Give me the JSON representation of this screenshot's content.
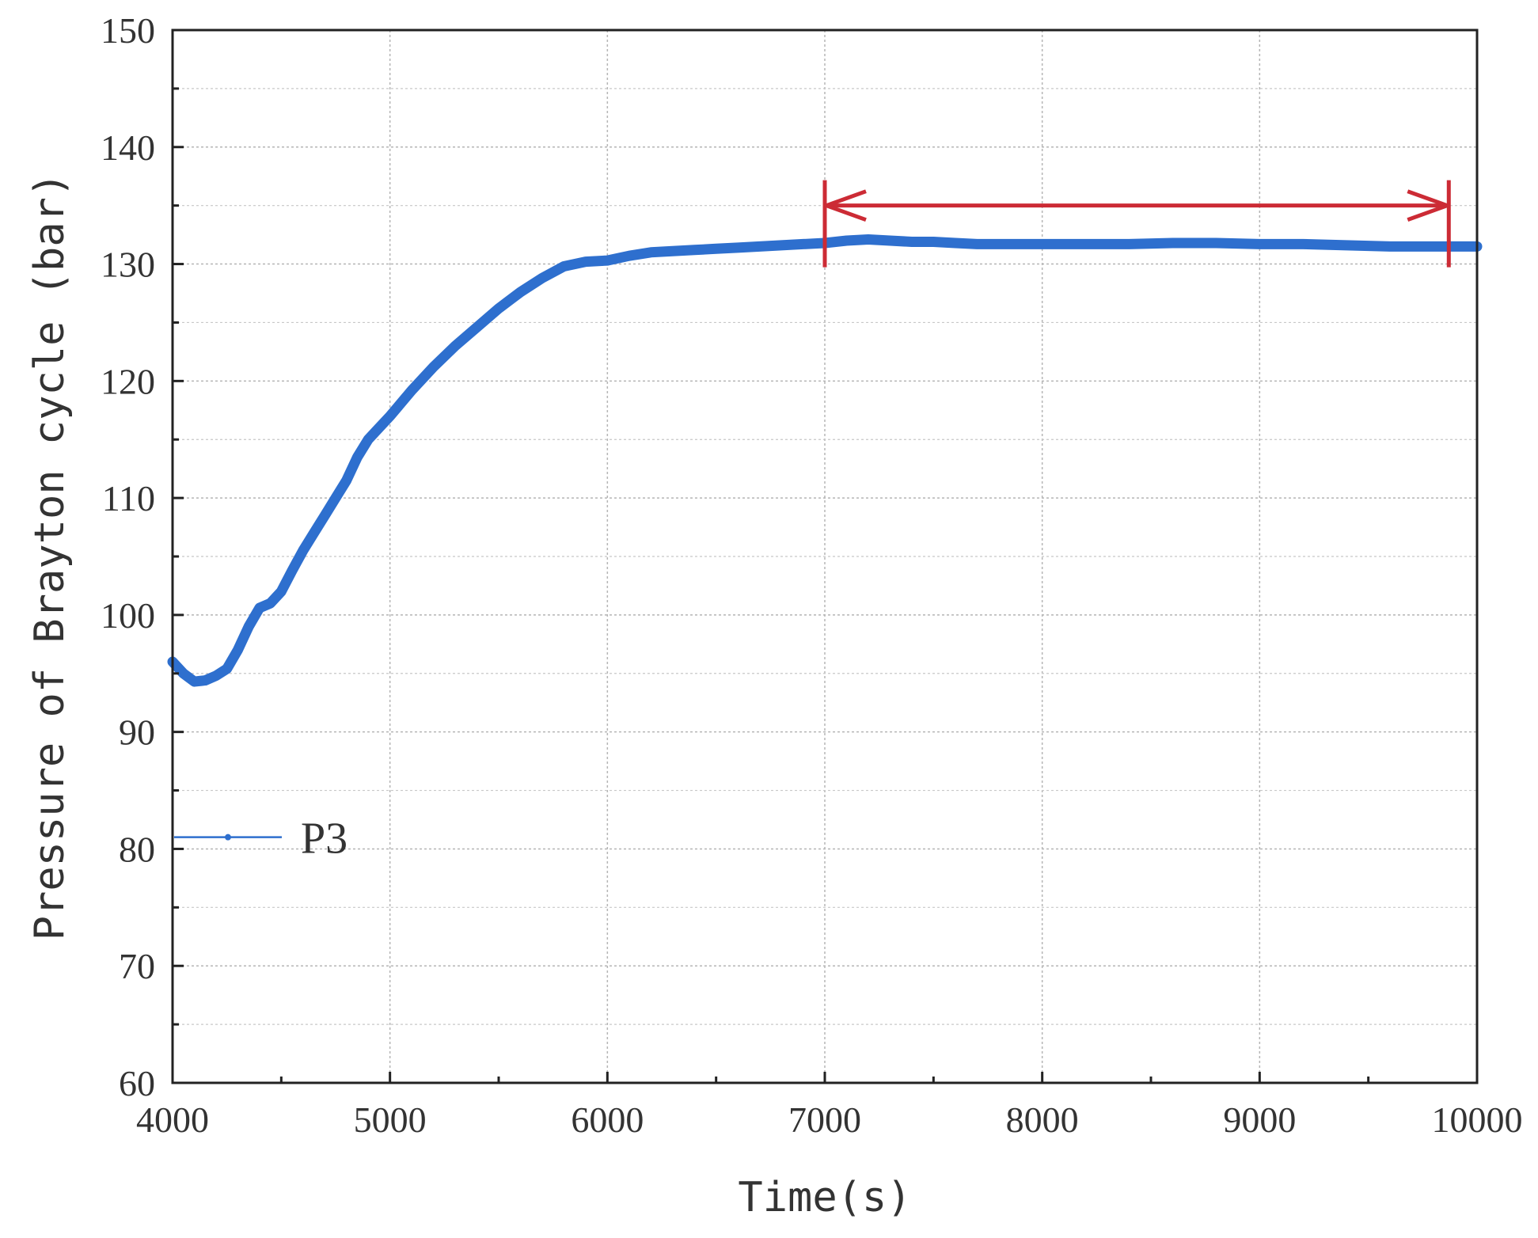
{
  "chart_data": {
    "type": "line",
    "xlabel": "Time(s)",
    "ylabel": "Pressure of Brayton cycle (bar)",
    "xlim": [
      4000,
      10000
    ],
    "ylim": [
      60,
      150
    ],
    "xticks": [
      4000,
      5000,
      6000,
      7000,
      8000,
      9000,
      10000
    ],
    "yticks": [
      60,
      70,
      80,
      90,
      100,
      110,
      120,
      130,
      140,
      150
    ],
    "grid": true,
    "legend_position": "lower-left",
    "series": [
      {
        "name": "P3",
        "color": "#2e6fce",
        "x": [
          4000,
          4050,
          4100,
          4150,
          4200,
          4250,
          4300,
          4350,
          4400,
          4450,
          4500,
          4550,
          4600,
          4650,
          4700,
          4750,
          4800,
          4850,
          4900,
          4950,
          5000,
          5100,
          5200,
          5300,
          5400,
          5500,
          5600,
          5700,
          5800,
          5900,
          6000,
          6100,
          6200,
          6300,
          6400,
          6500,
          6600,
          6700,
          6800,
          6900,
          7000,
          7100,
          7200,
          7300,
          7400,
          7500,
          7600,
          7700,
          7800,
          7900,
          8000,
          8200,
          8400,
          8600,
          8800,
          9000,
          9200,
          9400,
          9600,
          9800,
          10000
        ],
        "values": [
          96.0,
          95.0,
          94.3,
          94.4,
          94.8,
          95.4,
          97.0,
          99.0,
          100.6,
          101.0,
          102.0,
          103.8,
          105.5,
          107.0,
          108.5,
          110.0,
          111.5,
          113.5,
          115.0,
          116.0,
          117.0,
          119.2,
          121.2,
          123.0,
          124.6,
          126.2,
          127.6,
          128.8,
          129.8,
          130.2,
          130.3,
          130.7,
          131.0,
          131.1,
          131.2,
          131.3,
          131.4,
          131.5,
          131.6,
          131.7,
          131.8,
          132.0,
          132.1,
          132.0,
          131.9,
          131.9,
          131.8,
          131.7,
          131.7,
          131.7,
          131.7,
          131.7,
          131.7,
          131.8,
          131.8,
          131.7,
          131.7,
          131.6,
          131.5,
          131.5,
          131.5
        ]
      }
    ],
    "annotation": {
      "type": "double-arrow",
      "color": "#cc2b35",
      "x_start": 7000,
      "x_end": 9870,
      "y": 135
    }
  }
}
